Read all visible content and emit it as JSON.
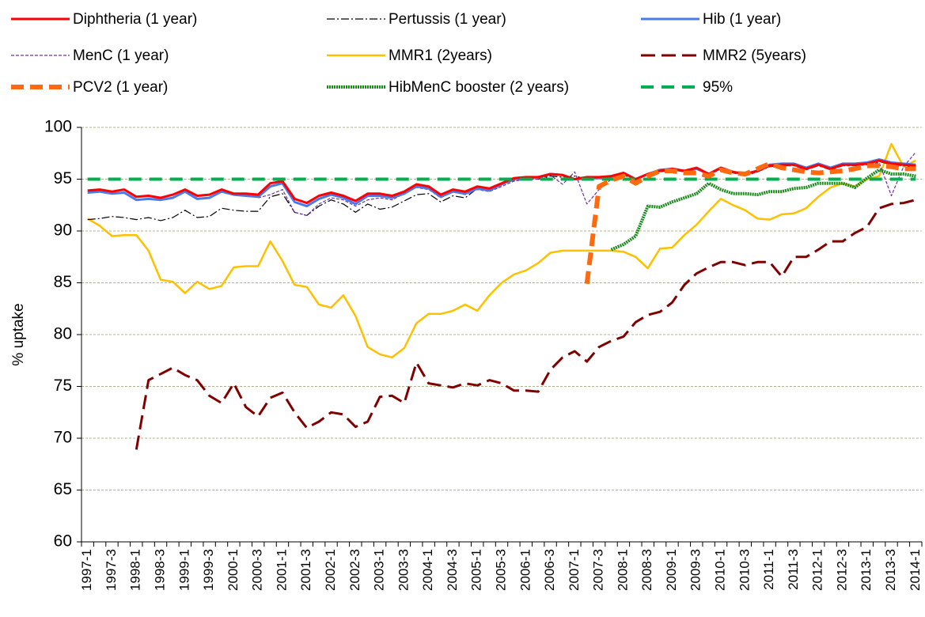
{
  "chart_data": {
    "type": "line",
    "y_label": "% uptake",
    "categories": [
      "1997-1",
      null,
      "1997-3",
      null,
      "1998-1",
      null,
      "1998-3",
      null,
      "1999-1",
      null,
      "1999-3",
      null,
      "2000-1",
      null,
      "2000-3",
      null,
      "2001-1",
      null,
      "2001-3",
      null,
      "2002-1",
      null,
      "2002-3",
      null,
      "2003-1",
      null,
      "2003-3",
      null,
      "2004-1",
      null,
      "2004-3",
      null,
      "2005-1",
      null,
      "2005-3",
      null,
      "2006-1",
      null,
      "2006-3",
      null,
      "2007-1",
      null,
      "2007-3",
      null,
      "2008-1",
      null,
      "2008-3",
      null,
      "2009-1",
      null,
      "2009-3",
      null,
      "2010-1",
      null,
      "2010-3",
      null,
      "2011-1",
      null,
      "2011-3",
      null,
      "2012-1",
      null,
      "2012-3",
      null,
      "2013-1",
      null,
      "2013-3",
      null,
      "2014-1"
    ],
    "ylim": [
      60,
      100
    ],
    "yticks": [
      60,
      65,
      70,
      75,
      80,
      85,
      90,
      95,
      100
    ],
    "grid": true,
    "series": [
      {
        "name": "Diphtheria (1 year)",
        "color": "#ff0000",
        "values": [
          93.9,
          94.0,
          93.8,
          94.0,
          93.3,
          93.4,
          93.2,
          93.5,
          94.0,
          93.4,
          93.5,
          94.0,
          93.6,
          93.6,
          93.5,
          94.6,
          94.8,
          93.1,
          92.7,
          93.4,
          93.7,
          93.4,
          92.9,
          93.6,
          93.6,
          93.4,
          93.8,
          94.5,
          94.3,
          93.5,
          94.0,
          93.8,
          94.3,
          94.1,
          94.6,
          95.1,
          95.2,
          95.2,
          95.5,
          95.4,
          95.0,
          95.2,
          95.2,
          95.3,
          95.6,
          95.0,
          95.5,
          95.8,
          96.0,
          95.8,
          96.1,
          95.5,
          96.1,
          95.7,
          95.5,
          95.8,
          96.3,
          96.4,
          96.4,
          96.0,
          96.4,
          96.0,
          96.4,
          96.4,
          96.5,
          96.8,
          96.5,
          96.4,
          96.3
        ]
      },
      {
        "name": "Pertussis (1 year)",
        "color": "#000000",
        "values": [
          91.1,
          91.2,
          91.4,
          91.3,
          91.1,
          91.3,
          91.0,
          91.3,
          92.0,
          91.3,
          91.4,
          92.2,
          92.0,
          91.9,
          91.9,
          93.3,
          93.6,
          91.8,
          91.5,
          92.4,
          93.0,
          92.6,
          91.8,
          92.6,
          92.1,
          92.3,
          92.9,
          93.5,
          93.6,
          92.8,
          93.4,
          93.2,
          94.1,
          93.9,
          94.5,
          94.9,
          95.0,
          95.0,
          95.3,
          95.2,
          95.3,
          95.0,
          95.1,
          95.2,
          95.4,
          95.0,
          95.4,
          95.7,
          95.9,
          95.7,
          96.0,
          95.4,
          96.0,
          95.6,
          95.4,
          95.7,
          96.2,
          96.3,
          96.3,
          95.9,
          96.3,
          95.9,
          96.3,
          96.3,
          96.4,
          96.7,
          96.4,
          96.3,
          96.2
        ]
      },
      {
        "name": "Hib (1 year)",
        "color": "#4a7be8",
        "values": [
          93.7,
          93.8,
          93.6,
          93.7,
          93.0,
          93.1,
          93.0,
          93.2,
          93.8,
          93.1,
          93.2,
          93.8,
          93.5,
          93.4,
          93.3,
          94.3,
          94.6,
          92.8,
          92.4,
          93.1,
          93.5,
          93.2,
          92.6,
          93.4,
          93.4,
          93.2,
          93.6,
          94.3,
          94.1,
          93.3,
          93.8,
          93.6,
          94.1,
          93.9,
          94.5,
          95.0,
          95.1,
          95.2,
          95.5,
          95.4,
          95.0,
          95.1,
          95.1,
          95.2,
          95.6,
          95.0,
          95.5,
          95.9,
          96.0,
          95.8,
          96.0,
          95.5,
          96.1,
          95.7,
          95.5,
          95.8,
          96.4,
          96.5,
          96.5,
          96.1,
          96.5,
          96.1,
          96.5,
          96.5,
          96.6,
          96.9,
          96.6,
          96.5,
          96.4
        ]
      },
      {
        "name": "MenC (1 year)",
        "color": "#7030a0",
        "values": [
          null,
          null,
          null,
          null,
          null,
          null,
          null,
          null,
          null,
          null,
          null,
          null,
          null,
          null,
          93.2,
          93.5,
          94.0,
          91.8,
          91.5,
          92.6,
          93.2,
          93.0,
          92.4,
          93.0,
          93.2,
          93.0,
          93.6,
          94.2,
          94.0,
          93.2,
          93.8,
          93.5,
          94.0,
          93.8,
          94.3,
          94.8,
          95.0,
          95.0,
          95.4,
          94.5,
          95.7,
          92.6,
          94.0,
          95.0,
          95.5,
          95.0,
          95.5,
          95.8,
          96.0,
          95.8,
          96.0,
          95.5,
          96.0,
          95.6,
          95.3,
          95.7,
          96.3,
          96.3,
          96.3,
          95.9,
          96.3,
          95.9,
          96.3,
          96.3,
          96.4,
          96.6,
          93.4,
          96.2,
          97.6
        ]
      },
      {
        "name": "MMR1 (2years)",
        "color": "#ffc000",
        "values": [
          91.2,
          90.5,
          89.5,
          89.6,
          89.6,
          88.1,
          85.3,
          85.1,
          84.0,
          85.1,
          84.4,
          84.7,
          86.5,
          86.6,
          86.6,
          89.0,
          87.1,
          84.8,
          84.6,
          82.9,
          82.6,
          83.8,
          81.8,
          78.8,
          78.1,
          77.8,
          78.7,
          81.1,
          82.0,
          82.0,
          82.3,
          82.9,
          82.3,
          83.8,
          85.0,
          85.8,
          86.2,
          86.9,
          87.9,
          88.1,
          88.1,
          88.1,
          88.1,
          88.1,
          88.0,
          87.5,
          86.4,
          88.3,
          88.4,
          89.6,
          90.6,
          91.9,
          93.1,
          92.5,
          92.0,
          91.2,
          91.1,
          91.6,
          91.7,
          92.2,
          93.3,
          94.2,
          94.6,
          94.3,
          95.0,
          95.3,
          98.4,
          96.2,
          96.8
        ]
      },
      {
        "name": "MMR2 (5years)",
        "color": "#800000",
        "values": [
          null,
          null,
          null,
          null,
          68.9,
          75.6,
          76.2,
          76.8,
          76.1,
          75.6,
          74.1,
          73.4,
          75.3,
          73.0,
          72.1,
          73.9,
          74.4,
          72.5,
          71.0,
          71.6,
          72.5,
          72.3,
          71.1,
          71.6,
          74.0,
          74.1,
          73.4,
          77.3,
          75.3,
          75.1,
          74.9,
          75.3,
          75.1,
          75.6,
          75.3,
          74.6,
          74.6,
          74.5,
          76.6,
          77.8,
          78.4,
          77.4,
          78.8,
          79.4,
          79.8,
          81.2,
          81.9,
          82.2,
          83.1,
          84.8,
          85.9,
          86.5,
          87.0,
          87.0,
          86.7,
          87.0,
          87.0,
          85.6,
          87.5,
          87.5,
          88.2,
          89.0,
          89.0,
          89.8,
          90.4,
          92.2,
          92.6,
          92.7,
          93.0
        ]
      },
      {
        "name": "PCV2 (1 year)",
        "color": "#ff6a10",
        "values": [
          null,
          null,
          null,
          null,
          null,
          null,
          null,
          null,
          null,
          null,
          null,
          null,
          null,
          null,
          null,
          null,
          null,
          null,
          null,
          null,
          null,
          null,
          null,
          null,
          null,
          null,
          null,
          null,
          null,
          null,
          null,
          null,
          null,
          null,
          null,
          null,
          null,
          null,
          null,
          null,
          null,
          84.9,
          94.3,
          94.9,
          95.3,
          94.6,
          95.3,
          95.8,
          95.8,
          95.6,
          95.6,
          95.3,
          95.9,
          95.6,
          95.5,
          96.0,
          96.5,
          96.1,
          95.9,
          95.7,
          95.6,
          95.7,
          95.8,
          96.0,
          96.3,
          96.3,
          96.2,
          96.0,
          96.0
        ]
      },
      {
        "name": "HibMenC booster (2 years)",
        "color": "#1a8a1a",
        "values": [
          null,
          null,
          null,
          null,
          null,
          null,
          null,
          null,
          null,
          null,
          null,
          null,
          null,
          null,
          null,
          null,
          null,
          null,
          null,
          null,
          null,
          null,
          null,
          null,
          null,
          null,
          null,
          null,
          null,
          null,
          null,
          null,
          null,
          null,
          null,
          null,
          null,
          null,
          null,
          null,
          null,
          null,
          null,
          88.2,
          88.7,
          89.5,
          92.4,
          92.3,
          92.8,
          93.2,
          93.6,
          94.6,
          94.0,
          93.6,
          93.6,
          93.5,
          93.8,
          93.8,
          94.1,
          94.2,
          94.6,
          94.6,
          94.6,
          94.2,
          95.1,
          95.9,
          95.5,
          95.5,
          95.3
        ]
      },
      {
        "name": "95%",
        "color": "#00b050",
        "values": [
          95,
          95,
          95,
          95,
          95,
          95,
          95,
          95,
          95,
          95,
          95,
          95,
          95,
          95,
          95,
          95,
          95,
          95,
          95,
          95,
          95,
          95,
          95,
          95,
          95,
          95,
          95,
          95,
          95,
          95,
          95,
          95,
          95,
          95,
          95,
          95,
          95,
          95,
          95,
          95,
          95,
          95,
          95,
          95,
          95,
          95,
          95,
          95,
          95,
          95,
          95,
          95,
          95,
          95,
          95,
          95,
          95,
          95,
          95,
          95,
          95,
          95,
          95,
          95,
          95,
          95,
          95,
          95,
          95
        ]
      }
    ]
  }
}
